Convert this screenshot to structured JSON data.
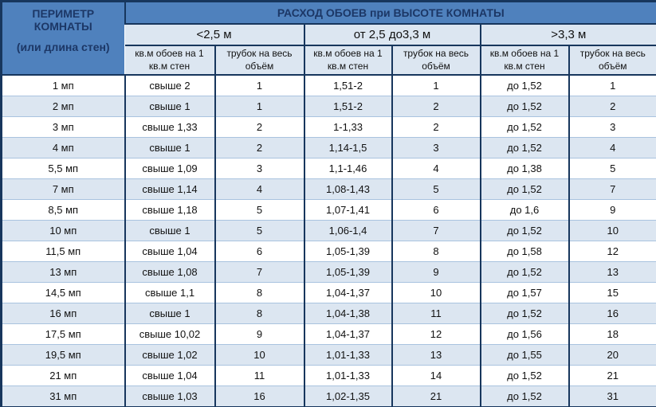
{
  "chart_data": {
    "type": "table",
    "title": "РАСХОД ОБОЕВ при ВЫСОТЕ КОМНАТЫ",
    "row_header_line1": "ПЕРИМЕТР КОМНАТЫ",
    "row_header_line2": "(или длина стен)",
    "column_groups": [
      "<2,5 м",
      "от 2,5 до3,3 м",
      ">3,3 м"
    ],
    "sub_columns": [
      "кв.м обоев на 1 кв.м стен",
      "трубок на весь объём"
    ],
    "rows": [
      [
        "1 мп",
        "свыше 2",
        "1",
        "1,51-2",
        "1",
        "до 1,52",
        "1"
      ],
      [
        "2 мп",
        "свыше 1",
        "1",
        "1,51-2",
        "2",
        "до 1,52",
        "2"
      ],
      [
        "3 мп",
        "свыше 1,33",
        "2",
        "1-1,33",
        "2",
        "до 1,52",
        "3"
      ],
      [
        "4 мп",
        "свыше 1",
        "2",
        "1,14-1,5",
        "3",
        "до 1,52",
        "4"
      ],
      [
        "5,5 мп",
        "свыше 1,09",
        "3",
        "1,1-1,46",
        "4",
        "до 1,38",
        "5"
      ],
      [
        "7 мп",
        "свыше 1,14",
        "4",
        "1,08-1,43",
        "5",
        "до 1,52",
        "7"
      ],
      [
        "8,5 мп",
        "свыше 1,18",
        "5",
        "1,07-1,41",
        "6",
        "до 1,6",
        "9"
      ],
      [
        "10 мп",
        "свыше 1",
        "5",
        "1,06-1,4",
        "7",
        "до 1,52",
        "10"
      ],
      [
        "11,5 мп",
        "свыше 1,04",
        "6",
        "1,05-1,39",
        "8",
        "до 1,58",
        "12"
      ],
      [
        "13 мп",
        "свыше 1,08",
        "7",
        "1,05-1,39",
        "9",
        "до 1,52",
        "13"
      ],
      [
        "14,5 мп",
        "свыше 1,1",
        "8",
        "1,04-1,37",
        "10",
        "до 1,57",
        "15"
      ],
      [
        "16 мп",
        "свыше 1",
        "8",
        "1,04-1,38",
        "11",
        "до 1,52",
        "16"
      ],
      [
        "17,5 мп",
        "свыше 10,02",
        "9",
        "1,04-1,37",
        "12",
        "до 1,56",
        "18"
      ],
      [
        "19,5 мп",
        "свыше 1,02",
        "10",
        "1,01-1,33",
        "13",
        "до 1,55",
        "20"
      ],
      [
        "21 мп",
        "свыше 1,04",
        "11",
        "1,01-1,33",
        "14",
        "до 1,52",
        "21"
      ],
      [
        "31 мп",
        "свыше 1,03",
        "16",
        "1,02-1,35",
        "21",
        "до 1,52",
        "31"
      ]
    ]
  },
  "colors": {
    "header_bg": "#4f81bd",
    "header_text": "#1c3766",
    "light_fill": "#dce6f1",
    "border_dark": "#17365d",
    "row_divider": "#a9c3df",
    "body_text": "#111111"
  }
}
